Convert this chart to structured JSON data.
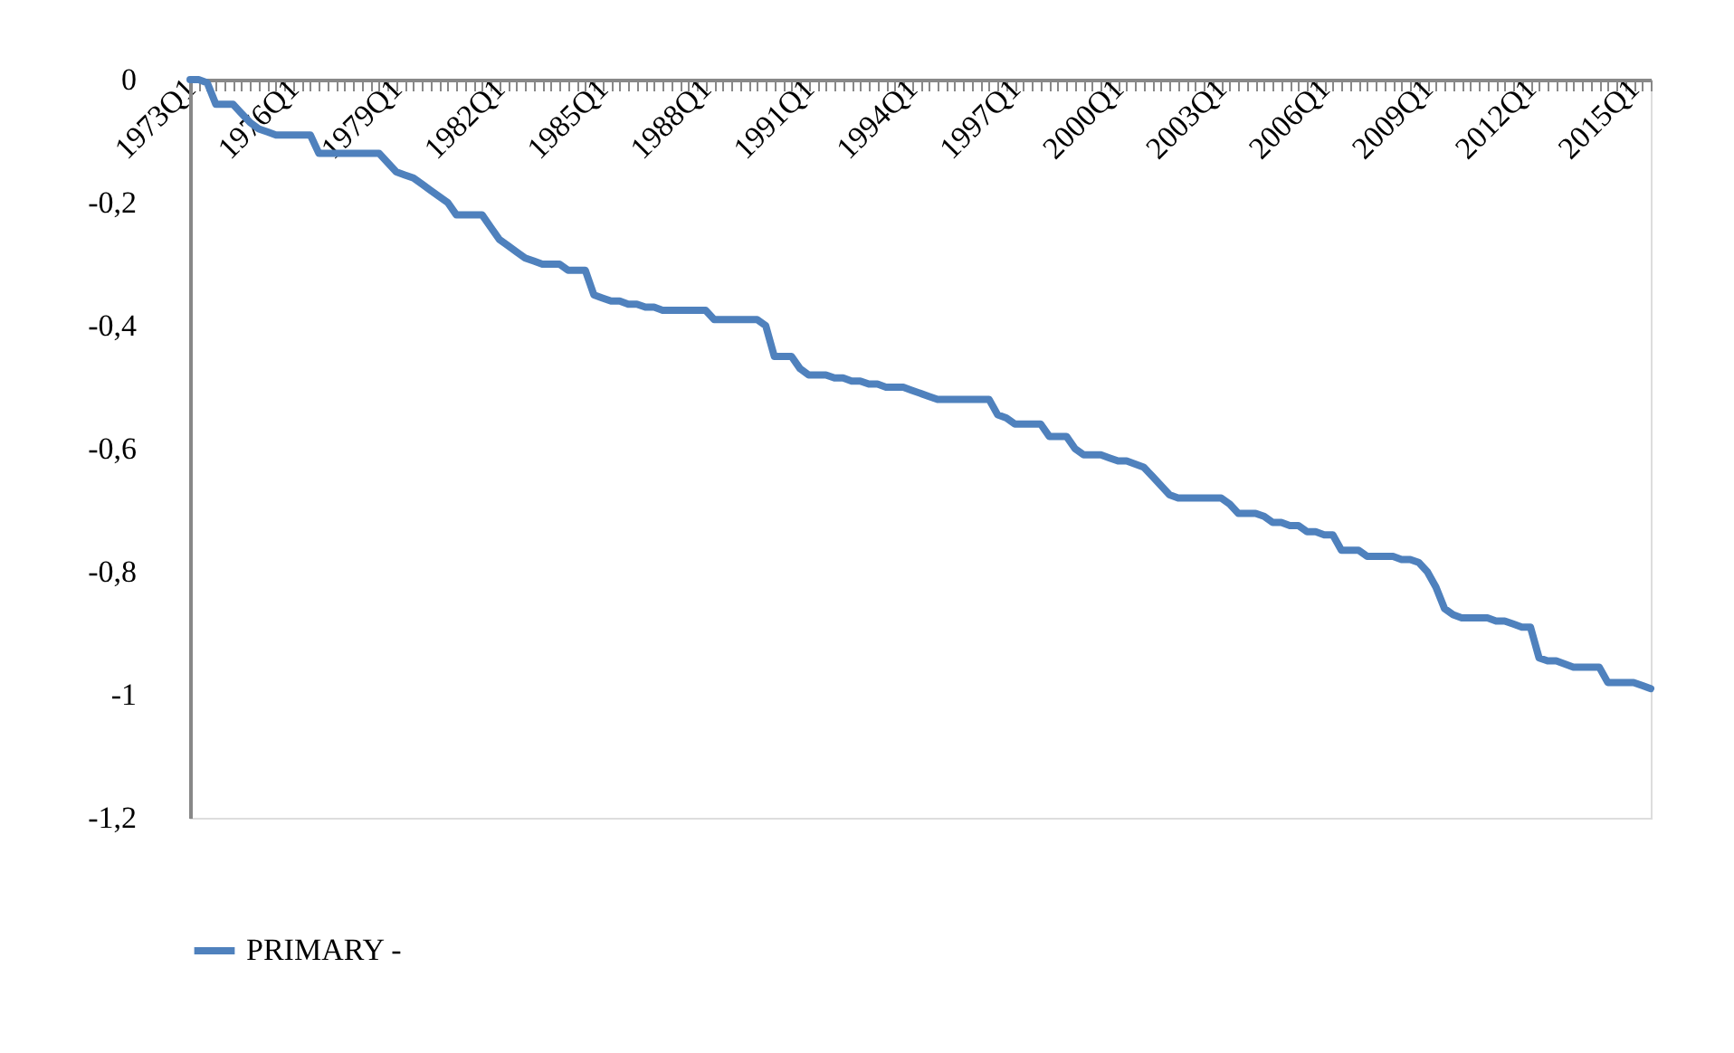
{
  "chart_data": {
    "type": "line",
    "categories": [
      "1973Q1",
      null,
      null,
      null,
      null,
      null,
      null,
      null,
      null,
      null,
      null,
      null,
      "1976Q1",
      null,
      null,
      null,
      null,
      null,
      null,
      null,
      null,
      null,
      null,
      null,
      "1979Q1",
      null,
      null,
      null,
      null,
      null,
      null,
      null,
      null,
      null,
      null,
      null,
      "1982Q1",
      null,
      null,
      null,
      null,
      null,
      null,
      null,
      null,
      null,
      null,
      null,
      "1985Q1",
      null,
      null,
      null,
      null,
      null,
      null,
      null,
      null,
      null,
      null,
      null,
      "1988Q1",
      null,
      null,
      null,
      null,
      null,
      null,
      null,
      null,
      null,
      null,
      null,
      "1991Q1",
      null,
      null,
      null,
      null,
      null,
      null,
      null,
      null,
      null,
      null,
      null,
      "1994Q1",
      null,
      null,
      null,
      null,
      null,
      null,
      null,
      null,
      null,
      null,
      null,
      "1997Q1",
      null,
      null,
      null,
      null,
      null,
      null,
      null,
      null,
      null,
      null,
      null,
      "2000Q1",
      null,
      null,
      null,
      null,
      null,
      null,
      null,
      null,
      null,
      null,
      null,
      "2003Q1",
      null,
      null,
      null,
      null,
      null,
      null,
      null,
      null,
      null,
      null,
      null,
      "2006Q1",
      null,
      null,
      null,
      null,
      null,
      null,
      null,
      null,
      null,
      null,
      null,
      "2009Q1",
      null,
      null,
      null,
      null,
      null,
      null,
      null,
      null,
      null,
      null,
      null,
      "2012Q1",
      null,
      null,
      null,
      null,
      null,
      null,
      null,
      null,
      null,
      null,
      null,
      "2015Q1",
      null,
      null
    ],
    "series": [
      {
        "name": "PRIMARY -",
        "color": "#4f81bd",
        "values": [
          0,
          0,
          -0.005,
          -0.04,
          -0.04,
          -0.04,
          -0.055,
          -0.07,
          -0.08,
          -0.085,
          -0.09,
          -0.09,
          -0.09,
          -0.09,
          -0.09,
          -0.12,
          -0.12,
          -0.12,
          -0.12,
          -0.12,
          -0.12,
          -0.12,
          -0.12,
          -0.135,
          -0.15,
          -0.155,
          -0.16,
          -0.17,
          -0.18,
          -0.19,
          -0.2,
          -0.22,
          -0.22,
          -0.22,
          -0.22,
          -0.24,
          -0.26,
          -0.27,
          -0.28,
          -0.29,
          -0.295,
          -0.3,
          -0.3,
          -0.3,
          -0.31,
          -0.31,
          -0.31,
          -0.35,
          -0.355,
          -0.36,
          -0.36,
          -0.365,
          -0.365,
          -0.37,
          -0.37,
          -0.375,
          -0.375,
          -0.375,
          -0.375,
          -0.375,
          -0.375,
          -0.39,
          -0.39,
          -0.39,
          -0.39,
          -0.39,
          -0.39,
          -0.4,
          -0.45,
          -0.45,
          -0.45,
          -0.47,
          -0.48,
          -0.48,
          -0.48,
          -0.485,
          -0.485,
          -0.49,
          -0.49,
          -0.495,
          -0.495,
          -0.5,
          -0.5,
          -0.5,
          -0.505,
          -0.51,
          -0.515,
          -0.52,
          -0.52,
          -0.52,
          -0.52,
          -0.52,
          -0.52,
          -0.52,
          -0.545,
          -0.55,
          -0.56,
          -0.56,
          -0.56,
          -0.56,
          -0.58,
          -0.58,
          -0.58,
          -0.6,
          -0.61,
          -0.61,
          -0.61,
          -0.615,
          -0.62,
          -0.62,
          -0.625,
          -0.63,
          -0.645,
          -0.66,
          -0.675,
          -0.68,
          -0.68,
          -0.68,
          -0.68,
          -0.68,
          -0.68,
          -0.69,
          -0.705,
          -0.705,
          -0.705,
          -0.71,
          -0.72,
          -0.72,
          -0.725,
          -0.725,
          -0.735,
          -0.735,
          -0.74,
          -0.74,
          -0.765,
          -0.765,
          -0.765,
          -0.775,
          -0.775,
          -0.775,
          -0.775,
          -0.78,
          -0.78,
          -0.785,
          -0.8,
          -0.825,
          -0.86,
          -0.87,
          -0.875,
          -0.875,
          -0.875,
          -0.875,
          -0.88,
          -0.88,
          -0.885,
          -0.89,
          -0.89,
          -0.94,
          -0.945,
          -0.945,
          -0.95,
          -0.955,
          -0.955,
          -0.955,
          -0.955,
          -0.98,
          -0.98,
          -0.98,
          -0.98,
          -0.985,
          -0.99
        ]
      }
    ],
    "ylim": [
      -1.2,
      0
    ],
    "yticks": [
      0,
      {
        "value": -0.2,
        "label": "-0,2"
      },
      {
        "value": -0.4,
        "label": "-0,4"
      },
      {
        "value": -0.6,
        "label": "-0,6"
      },
      {
        "value": -0.8,
        "label": "-0,8"
      },
      -1,
      {
        "value": -1.2,
        "label": "-1,2"
      }
    ],
    "grid": false,
    "legend": "bottom",
    "marker": "none",
    "line_style": "solid"
  }
}
